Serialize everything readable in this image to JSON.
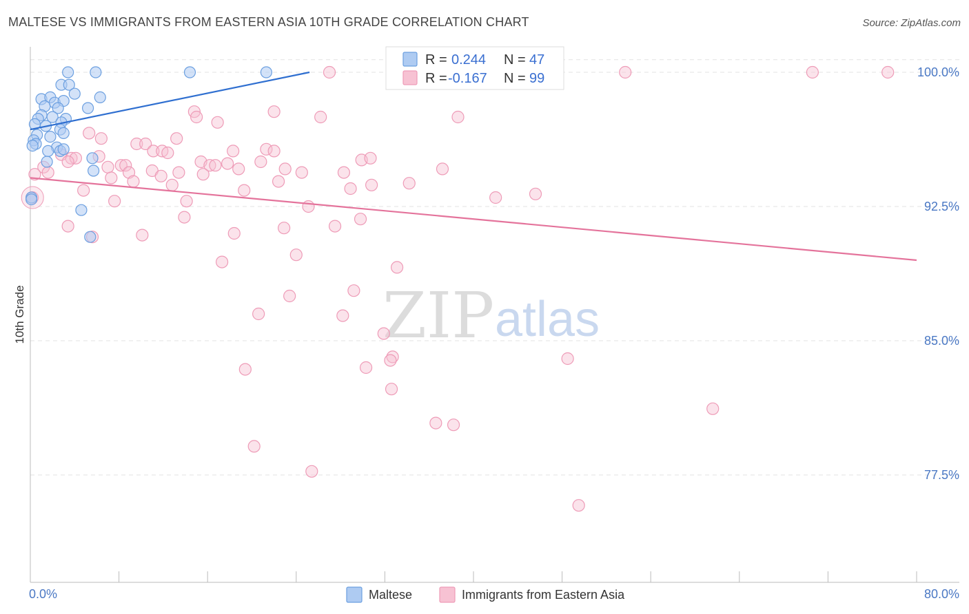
{
  "title": "MALTESE VS IMMIGRANTS FROM EASTERN ASIA 10TH GRADE CORRELATION CHART",
  "source": "Source: ZipAtlas.com",
  "watermark": {
    "zip": "ZIP",
    "atlas": "atlas"
  },
  "colors": {
    "maltese_fill": "#aecbf2",
    "maltese_stroke": "#6b9fe0",
    "maltese_line": "#2f6fd0",
    "asia_fill": "#f7c2d3",
    "asia_stroke": "#ee9bb7",
    "asia_line": "#e4739b",
    "axis_label": "#4a78c4",
    "grid": "#e3e3e3"
  },
  "legend": {
    "r_label": "R =",
    "n_label": "N =",
    "maltese_r": "0.244",
    "maltese_n": "47",
    "asia_r": "-0.167",
    "asia_n": "99"
  },
  "bottom_legend": {
    "maltese": "Maltese",
    "asia": "Immigrants from Eastern Asia"
  },
  "chart_data": {
    "type": "scatter",
    "title": "MALTESE VS IMMIGRANTS FROM EASTERN ASIA 10TH GRADE CORRELATION CHART",
    "xlabel": "",
    "ylabel": "10th Grade",
    "xlim": [
      0,
      80
    ],
    "ylim": [
      71.5,
      101
    ],
    "x_tick_labels": [
      "0.0%",
      "80.0%"
    ],
    "y_ticks": [
      100,
      92.5,
      85,
      77.5
    ],
    "y_tick_labels": [
      "100.0%",
      "92.5%",
      "85.0%",
      "77.5%"
    ],
    "grid": true,
    "series": [
      {
        "name": "Maltese",
        "R": 0.244,
        "N": 47,
        "trend": {
          "x": [
            0,
            25.2
          ],
          "y": [
            96.8,
            100.0
          ]
        },
        "points": [
          {
            "x": 3.4,
            "y": 100.0
          },
          {
            "x": 5.9,
            "y": 100.0
          },
          {
            "x": 14.4,
            "y": 100.0
          },
          {
            "x": 21.3,
            "y": 100.0
          },
          {
            "x": 2.8,
            "y": 99.3
          },
          {
            "x": 3.5,
            "y": 99.3
          },
          {
            "x": 4.0,
            "y": 98.8
          },
          {
            "x": 6.3,
            "y": 98.6
          },
          {
            "x": 1.0,
            "y": 98.5
          },
          {
            "x": 1.8,
            "y": 98.6
          },
          {
            "x": 2.2,
            "y": 98.3
          },
          {
            "x": 3.0,
            "y": 98.4
          },
          {
            "x": 1.3,
            "y": 98.1
          },
          {
            "x": 2.5,
            "y": 98.0
          },
          {
            "x": 5.2,
            "y": 98.0
          },
          {
            "x": 1.0,
            "y": 97.6
          },
          {
            "x": 2.0,
            "y": 97.5
          },
          {
            "x": 3.2,
            "y": 97.4
          },
          {
            "x": 0.7,
            "y": 97.4
          },
          {
            "x": 2.8,
            "y": 97.2
          },
          {
            "x": 0.4,
            "y": 97.1
          },
          {
            "x": 1.4,
            "y": 97.0
          },
          {
            "x": 2.7,
            "y": 96.8
          },
          {
            "x": 0.6,
            "y": 96.5
          },
          {
            "x": 1.8,
            "y": 96.4
          },
          {
            "x": 0.3,
            "y": 96.2
          },
          {
            "x": 3.0,
            "y": 96.6
          },
          {
            "x": 0.5,
            "y": 96.0
          },
          {
            "x": 0.2,
            "y": 95.9
          },
          {
            "x": 2.4,
            "y": 95.8
          },
          {
            "x": 1.6,
            "y": 95.6
          },
          {
            "x": 2.7,
            "y": 95.6
          },
          {
            "x": 3.0,
            "y": 95.7
          },
          {
            "x": 1.5,
            "y": 95.0
          },
          {
            "x": 5.6,
            "y": 95.2
          },
          {
            "x": 5.7,
            "y": 94.5
          },
          {
            "x": 0.1,
            "y": 93.0
          },
          {
            "x": 0.1,
            "y": 92.9
          },
          {
            "x": 4.6,
            "y": 92.3
          },
          {
            "x": 5.4,
            "y": 90.8
          }
        ]
      },
      {
        "name": "Immigrants from Eastern Asia",
        "R": -0.167,
        "N": 99,
        "trend": {
          "x": [
            0,
            80
          ],
          "y": [
            94.1,
            89.5
          ]
        },
        "points": [
          {
            "x": 27.0,
            "y": 100.0
          },
          {
            "x": 40.4,
            "y": 100.0
          },
          {
            "x": 53.7,
            "y": 100.0
          },
          {
            "x": 70.6,
            "y": 100.0
          },
          {
            "x": 77.4,
            "y": 100.0
          },
          {
            "x": 14.8,
            "y": 97.8
          },
          {
            "x": 15.0,
            "y": 97.5
          },
          {
            "x": 16.9,
            "y": 97.2
          },
          {
            "x": 22.0,
            "y": 97.8
          },
          {
            "x": 26.2,
            "y": 97.5
          },
          {
            "x": 38.6,
            "y": 97.5
          },
          {
            "x": 5.3,
            "y": 96.6
          },
          {
            "x": 6.4,
            "y": 96.3
          },
          {
            "x": 13.2,
            "y": 96.3
          },
          {
            "x": 9.6,
            "y": 96.0
          },
          {
            "x": 10.4,
            "y": 96.0
          },
          {
            "x": 11.1,
            "y": 95.6
          },
          {
            "x": 11.9,
            "y": 95.6
          },
          {
            "x": 12.4,
            "y": 95.5
          },
          {
            "x": 18.3,
            "y": 95.6
          },
          {
            "x": 21.3,
            "y": 95.7
          },
          {
            "x": 22.0,
            "y": 95.6
          },
          {
            "x": 2.8,
            "y": 95.4
          },
          {
            "x": 3.7,
            "y": 95.2
          },
          {
            "x": 4.1,
            "y": 95.2
          },
          {
            "x": 6.2,
            "y": 95.3
          },
          {
            "x": 29.9,
            "y": 95.1
          },
          {
            "x": 30.7,
            "y": 95.2
          },
          {
            "x": 3.4,
            "y": 95.0
          },
          {
            "x": 15.4,
            "y": 95.0
          },
          {
            "x": 17.8,
            "y": 94.9
          },
          {
            "x": 20.8,
            "y": 95.0
          },
          {
            "x": 7.0,
            "y": 94.7
          },
          {
            "x": 8.2,
            "y": 94.8
          },
          {
            "x": 8.6,
            "y": 94.8
          },
          {
            "x": 16.2,
            "y": 94.8
          },
          {
            "x": 16.7,
            "y": 94.8
          },
          {
            "x": 18.8,
            "y": 94.6
          },
          {
            "x": 23.0,
            "y": 94.6
          },
          {
            "x": 37.2,
            "y": 94.6
          },
          {
            "x": 1.2,
            "y": 94.7
          },
          {
            "x": 1.6,
            "y": 94.4
          },
          {
            "x": 8.9,
            "y": 94.4
          },
          {
            "x": 11.0,
            "y": 94.5
          },
          {
            "x": 13.4,
            "y": 94.4
          },
          {
            "x": 15.6,
            "y": 94.3
          },
          {
            "x": 24.5,
            "y": 94.4
          },
          {
            "x": 28.3,
            "y": 94.4
          },
          {
            "x": 7.3,
            "y": 94.1
          },
          {
            "x": 9.3,
            "y": 93.9
          },
          {
            "x": 11.8,
            "y": 94.2
          },
          {
            "x": 12.8,
            "y": 93.7
          },
          {
            "x": 22.4,
            "y": 93.9
          },
          {
            "x": 30.8,
            "y": 93.7
          },
          {
            "x": 28.9,
            "y": 93.5
          },
          {
            "x": 34.2,
            "y": 93.8
          },
          {
            "x": 0.4,
            "y": 94.3
          },
          {
            "x": 0.2,
            "y": 93.0
          },
          {
            "x": 4.8,
            "y": 93.4
          },
          {
            "x": 19.3,
            "y": 93.4
          },
          {
            "x": 42.0,
            "y": 93.0
          },
          {
            "x": 45.6,
            "y": 93.2
          },
          {
            "x": 7.6,
            "y": 92.8
          },
          {
            "x": 14.1,
            "y": 92.8
          },
          {
            "x": 25.1,
            "y": 92.5
          },
          {
            "x": 13.9,
            "y": 91.9
          },
          {
            "x": 29.8,
            "y": 91.8
          },
          {
            "x": 3.4,
            "y": 91.4
          },
          {
            "x": 22.9,
            "y": 91.3
          },
          {
            "x": 27.5,
            "y": 91.4
          },
          {
            "x": 18.4,
            "y": 91.0
          },
          {
            "x": 10.1,
            "y": 90.9
          },
          {
            "x": 5.6,
            "y": 90.8
          },
          {
            "x": 24.0,
            "y": 89.8
          },
          {
            "x": 17.3,
            "y": 89.4
          },
          {
            "x": 33.1,
            "y": 89.1
          },
          {
            "x": 29.2,
            "y": 87.8
          },
          {
            "x": 23.4,
            "y": 87.5
          },
          {
            "x": 20.6,
            "y": 86.5
          },
          {
            "x": 28.2,
            "y": 86.4
          },
          {
            "x": 31.9,
            "y": 85.4
          },
          {
            "x": 32.7,
            "y": 84.1
          },
          {
            "x": 32.5,
            "y": 83.9
          },
          {
            "x": 48.5,
            "y": 84.0
          },
          {
            "x": 19.4,
            "y": 83.4
          },
          {
            "x": 30.3,
            "y": 83.5
          },
          {
            "x": 32.6,
            "y": 82.3
          },
          {
            "x": 61.6,
            "y": 81.2
          },
          {
            "x": 36.6,
            "y": 80.4
          },
          {
            "x": 38.2,
            "y": 80.3
          },
          {
            "x": 20.2,
            "y": 79.1
          },
          {
            "x": 25.4,
            "y": 77.7
          },
          {
            "x": 49.5,
            "y": 75.8
          }
        ]
      }
    ]
  }
}
